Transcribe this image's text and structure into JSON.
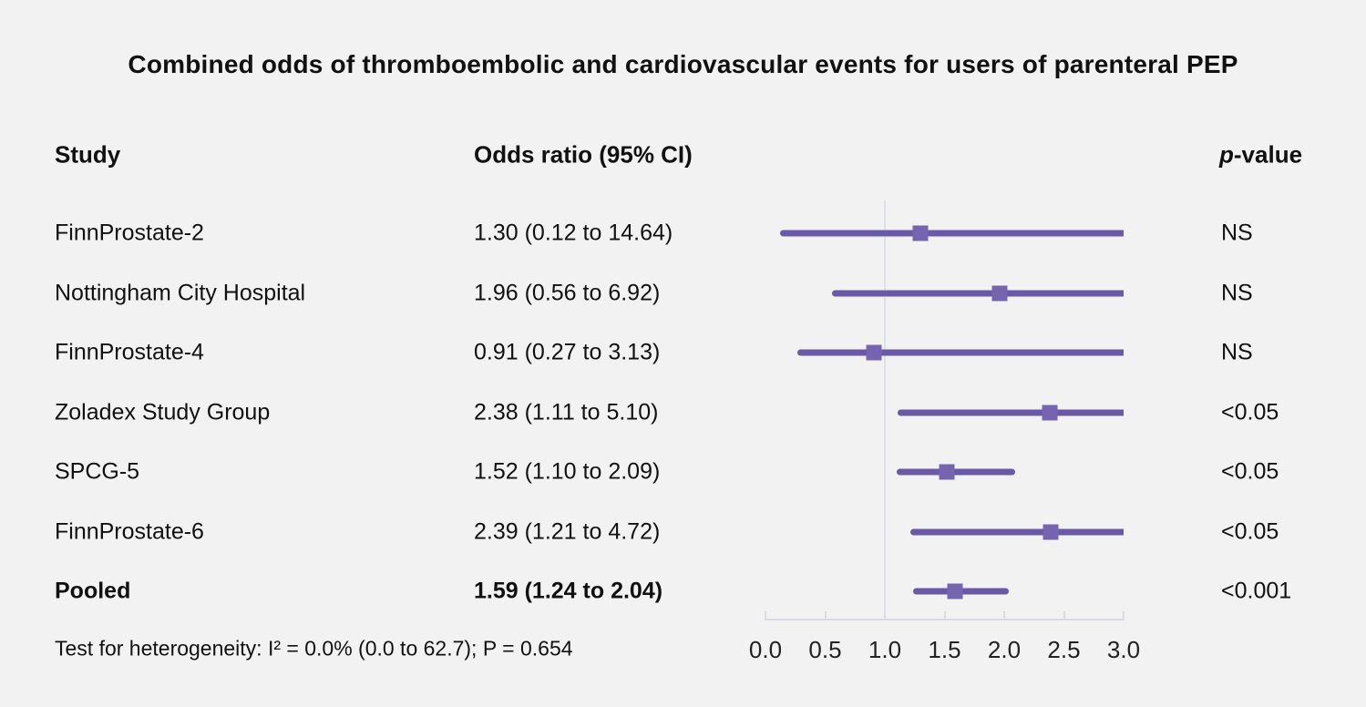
{
  "title": "Combined odds of thromboembolic and cardiovascular events for users of parenteral PEP",
  "columns": {
    "study": "Study",
    "odds_ratio": "Odds ratio (95% CI)",
    "pvalue_prefix": "p",
    "pvalue_suffix": "-value"
  },
  "footnote": "Test for heterogeneity: I² = 0.0% (0.0 to 62.7); P = 0.654",
  "colors": {
    "background": "#f2f2f2",
    "text": "#111111",
    "ci_line": "#6959a7",
    "marker": "#7565b0",
    "reference_line": "#dde1e7",
    "axis": "#d9dde3"
  },
  "chart_data": {
    "type": "forest",
    "title": "Combined odds of thromboembolic and cardiovascular events for users of parenteral PEP",
    "xlabel": "",
    "axis_range": [
      0.0,
      3.0
    ],
    "tick_values": [
      0.0,
      0.5,
      1.0,
      1.5,
      2.0,
      2.5,
      3.0
    ],
    "tick_labels": [
      "0.0",
      "0.5",
      "1.0",
      "1.5",
      "2.0",
      "2.5",
      "3.0"
    ],
    "reference_value": 1.0,
    "clip_high": 3.0,
    "grid": false,
    "rows": [
      {
        "study": "FinnProstate-2",
        "or_text": "1.30 (0.12 to 14.64)",
        "estimate": 1.3,
        "ci_low": 0.12,
        "ci_high": 14.64,
        "p_value": "NS",
        "bold": false
      },
      {
        "study": "Nottingham City Hospital",
        "or_text": "1.96 (0.56 to 6.92)",
        "estimate": 1.96,
        "ci_low": 0.56,
        "ci_high": 6.92,
        "p_value": "NS",
        "bold": false
      },
      {
        "study": "FinnProstate-4",
        "or_text": "0.91 (0.27 to 3.13)",
        "estimate": 0.91,
        "ci_low": 0.27,
        "ci_high": 3.13,
        "p_value": "NS",
        "bold": false
      },
      {
        "study": "Zoladex Study Group",
        "or_text": "2.38 (1.11 to 5.10)",
        "estimate": 2.38,
        "ci_low": 1.11,
        "ci_high": 5.1,
        "p_value": "<0.05",
        "bold": false
      },
      {
        "study": "SPCG-5",
        "or_text": "1.52 (1.10 to 2.09)",
        "estimate": 1.52,
        "ci_low": 1.1,
        "ci_high": 2.09,
        "p_value": "<0.05",
        "bold": false
      },
      {
        "study": "FinnProstate-6",
        "or_text": "2.39 (1.21 to 4.72)",
        "estimate": 2.39,
        "ci_low": 1.21,
        "ci_high": 4.72,
        "p_value": "<0.05",
        "bold": false
      },
      {
        "study": "Pooled",
        "or_text": "1.59 (1.24 to 2.04)",
        "estimate": 1.59,
        "ci_low": 1.24,
        "ci_high": 2.04,
        "p_value": "<0.001",
        "bold": true
      }
    ]
  }
}
